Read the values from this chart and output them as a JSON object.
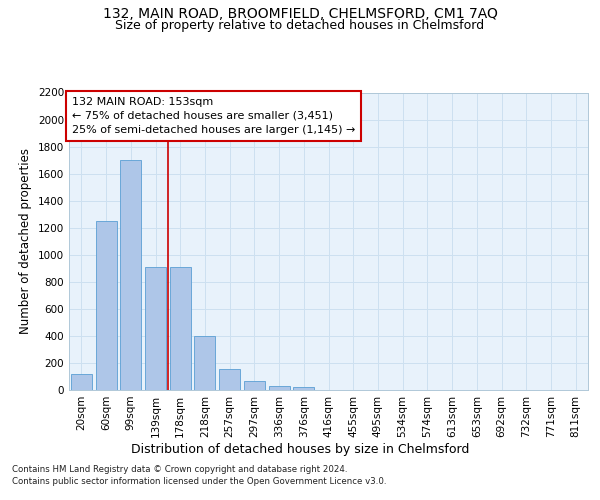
{
  "title": "132, MAIN ROAD, BROOMFIELD, CHELMSFORD, CM1 7AQ",
  "subtitle": "Size of property relative to detached houses in Chelmsford",
  "xlabel": "Distribution of detached houses by size in Chelmsford",
  "ylabel": "Number of detached properties",
  "categories": [
    "20sqm",
    "60sqm",
    "99sqm",
    "139sqm",
    "178sqm",
    "218sqm",
    "257sqm",
    "297sqm",
    "336sqm",
    "376sqm",
    "416sqm",
    "455sqm",
    "495sqm",
    "534sqm",
    "574sqm",
    "613sqm",
    "653sqm",
    "692sqm",
    "732sqm",
    "771sqm",
    "811sqm"
  ],
  "values": [
    120,
    1250,
    1700,
    910,
    910,
    400,
    155,
    65,
    30,
    20,
    0,
    0,
    0,
    0,
    0,
    0,
    0,
    0,
    0,
    0,
    0
  ],
  "bar_color": "#aec6e8",
  "bar_edge_color": "#5a9fd4",
  "grid_color": "#cde0f0",
  "ax_facecolor": "#e8f2fb",
  "background_color": "#ffffff",
  "annotation_text": "132 MAIN ROAD: 153sqm\n← 75% of detached houses are smaller (3,451)\n25% of semi-detached houses are larger (1,145) →",
  "annotation_box_color": "#ffffff",
  "annotation_box_edge": "#cc0000",
  "vline_x": 3.5,
  "vline_color": "#cc0000",
  "ylim": [
    0,
    2200
  ],
  "yticks": [
    0,
    200,
    400,
    600,
    800,
    1000,
    1200,
    1400,
    1600,
    1800,
    2000,
    2200
  ],
  "footer1": "Contains HM Land Registry data © Crown copyright and database right 2024.",
  "footer2": "Contains public sector information licensed under the Open Government Licence v3.0.",
  "title_fontsize": 10,
  "subtitle_fontsize": 9,
  "ylabel_fontsize": 8.5,
  "xlabel_fontsize": 9,
  "tick_fontsize": 7.5,
  "annotation_fontsize": 8,
  "footer_fontsize": 6.2
}
